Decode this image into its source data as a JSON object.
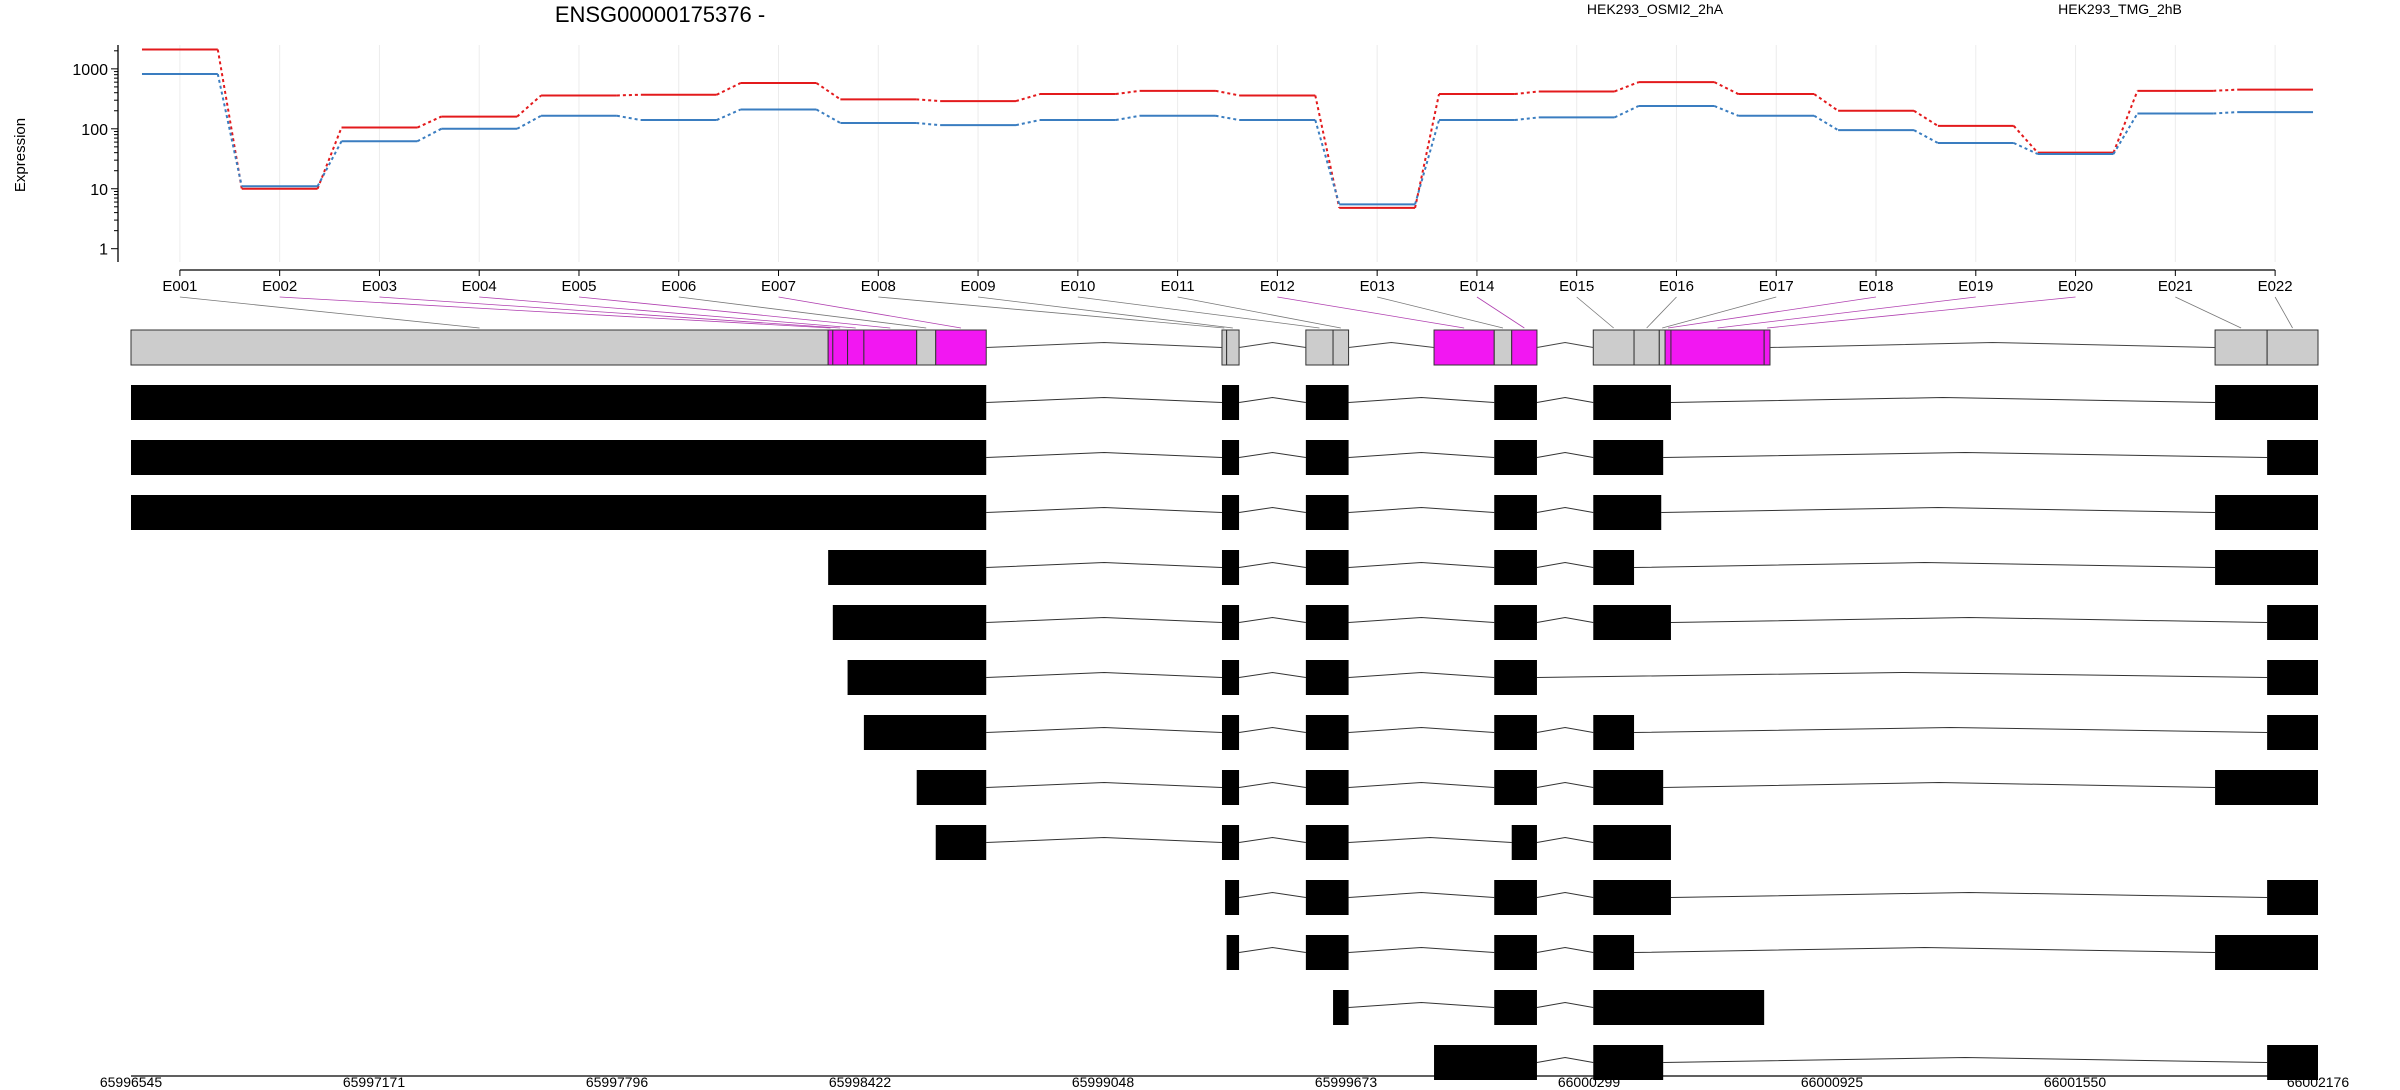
{
  "chart_data": {
    "type": "line",
    "title": "ENSG00000175376 -",
    "ylabel": "Expression",
    "yscale": "log10",
    "ylim": [
      0.6,
      2500
    ],
    "yticks": [
      1,
      10,
      100,
      1000
    ],
    "ytick_labels": [
      "1",
      "10",
      "100",
      "1000"
    ],
    "categories": [
      "E001",
      "E002",
      "E003",
      "E004",
      "E005",
      "E006",
      "E007",
      "E008",
      "E009",
      "E010",
      "E011",
      "E012",
      "E013",
      "E014",
      "E015",
      "E016",
      "E017",
      "E018",
      "E019",
      "E020",
      "E021",
      "E022"
    ],
    "series": [
      {
        "name": "HEK293_OSMI2_2hA",
        "color": "#e31a1c",
        "values": [
          2100,
          10,
          105,
          160,
          360,
          370,
          580,
          310,
          290,
          380,
          430,
          360,
          4.8,
          380,
          420,
          600,
          380,
          200,
          112,
          40,
          430,
          450
        ]
      },
      {
        "name": "HEK293_TMG_2hB",
        "color": "#3a7dc0",
        "values": [
          820,
          11,
          62,
          100,
          165,
          140,
          210,
          125,
          115,
          140,
          165,
          140,
          5.5,
          140,
          155,
          240,
          165,
          95,
          58,
          38,
          180,
          190
        ]
      }
    ],
    "genomic_axis": {
      "range": [
        65996545,
        66002176
      ],
      "tick_labels": [
        "65996545",
        "65997171",
        "65997796",
        "65998422",
        "65999048",
        "65999673",
        "66000299",
        "66000925",
        "66001550",
        "66002176"
      ]
    },
    "exon_bins": [
      {
        "id": "E001",
        "start": 65996545,
        "end": 65998340,
        "highlight": false
      },
      {
        "id": "E002",
        "start": 65998340,
        "end": 65998352,
        "highlight": true
      },
      {
        "id": "E003",
        "start": 65998352,
        "end": 65998390,
        "highlight": true
      },
      {
        "id": "E004",
        "start": 65998390,
        "end": 65998432,
        "highlight": true
      },
      {
        "id": "E005",
        "start": 65998432,
        "end": 65998568,
        "highlight": true
      },
      {
        "id": "E006",
        "start": 65998568,
        "end": 65998617,
        "highlight": false
      },
      {
        "id": "E007",
        "start": 65998617,
        "end": 65998747,
        "highlight": true
      },
      {
        "id": "E008",
        "start": 65999354,
        "end": 65999366,
        "highlight": false
      },
      {
        "id": "E009",
        "start": 65999366,
        "end": 65999398,
        "highlight": false
      },
      {
        "id": "E010",
        "start": 65999570,
        "end": 65999640,
        "highlight": false
      },
      {
        "id": "E011",
        "start": 65999640,
        "end": 65999680,
        "highlight": false
      },
      {
        "id": "E012",
        "start": 65999900,
        "end": 66000055,
        "highlight": true
      },
      {
        "id": "E013",
        "start": 66000055,
        "end": 66000100,
        "highlight": false
      },
      {
        "id": "E014",
        "start": 66000100,
        "end": 66000165,
        "highlight": true
      },
      {
        "id": "E015",
        "start": 66000310,
        "end": 66000415,
        "highlight": false
      },
      {
        "id": "E016",
        "start": 66000415,
        "end": 66000480,
        "highlight": false
      },
      {
        "id": "E017",
        "start": 66000480,
        "end": 66000495,
        "highlight": false
      },
      {
        "id": "E018",
        "start": 66000495,
        "end": 66000510,
        "highlight": true
      },
      {
        "id": "E019",
        "start": 66000510,
        "end": 66000750,
        "highlight": true
      },
      {
        "id": "E020",
        "start": 66000750,
        "end": 66000765,
        "highlight": true
      },
      {
        "id": "E021",
        "start": 66001911,
        "end": 66002045,
        "highlight": false
      },
      {
        "id": "E022",
        "start": 66002045,
        "end": 66002176,
        "highlight": false
      }
    ],
    "transcripts": [
      [
        [
          65996545,
          65998747
        ],
        [
          65999354,
          65999398
        ],
        [
          65999570,
          65999680
        ],
        [
          66000055,
          66000165
        ],
        [
          66000310,
          66000510
        ],
        [
          66001911,
          66002176
        ]
      ],
      [
        [
          65996545,
          65998747
        ],
        [
          65999354,
          65999398
        ],
        [
          65999570,
          65999680
        ],
        [
          66000055,
          66000165
        ],
        [
          66000310,
          66000490
        ],
        [
          66002045,
          66002176
        ]
      ],
      [
        [
          65996545,
          65998747
        ],
        [
          65999354,
          65999398
        ],
        [
          65999570,
          65999680
        ],
        [
          66000055,
          66000165
        ],
        [
          66000310,
          66000485
        ],
        [
          66001911,
          66002176
        ]
      ],
      [
        [
          65998340,
          65998747
        ],
        [
          65999354,
          65999398
        ],
        [
          65999570,
          65999680
        ],
        [
          66000055,
          66000165
        ],
        [
          66000310,
          66000415
        ],
        [
          66001911,
          66002176
        ]
      ],
      [
        [
          65998352,
          65998747
        ],
        [
          65999354,
          65999398
        ],
        [
          65999570,
          65999680
        ],
        [
          66000055,
          66000165
        ],
        [
          66000310,
          66000510
        ],
        [
          66002045,
          66002176
        ]
      ],
      [
        [
          65998390,
          65998747
        ],
        [
          65999354,
          65999398
        ],
        [
          65999570,
          65999680
        ],
        [
          66000055,
          66000165
        ],
        [
          66002045,
          66002176
        ]
      ],
      [
        [
          65998432,
          65998747
        ],
        [
          65999354,
          65999398
        ],
        [
          65999570,
          65999680
        ],
        [
          66000055,
          66000165
        ],
        [
          66000310,
          66000415
        ],
        [
          66002045,
          66002176
        ]
      ],
      [
        [
          65998568,
          65998747
        ],
        [
          65999354,
          65999398
        ],
        [
          65999570,
          65999680
        ],
        [
          66000055,
          66000165
        ],
        [
          66000310,
          66000490
        ],
        [
          66001911,
          66002176
        ]
      ],
      [
        [
          65998617,
          65998747
        ],
        [
          65999354,
          65999398
        ],
        [
          65999570,
          65999680
        ],
        [
          66000100,
          66000165
        ],
        [
          66000310,
          66000510
        ]
      ],
      [
        [
          65999362,
          65999398
        ],
        [
          65999570,
          65999680
        ],
        [
          66000055,
          66000165
        ],
        [
          66000310,
          66000510
        ],
        [
          66002045,
          66002176
        ]
      ],
      [
        [
          65999366,
          65999398
        ],
        [
          65999570,
          65999680
        ],
        [
          66000055,
          66000165
        ],
        [
          66000310,
          66000415
        ],
        [
          66001911,
          66002176
        ]
      ],
      [
        [
          65999640,
          65999680
        ],
        [
          66000055,
          66000165
        ],
        [
          66000310,
          66000750
        ]
      ],
      [
        [
          65999900,
          66000165
        ],
        [
          66000310,
          66000490
        ],
        [
          66002045,
          66002176
        ]
      ]
    ]
  }
}
